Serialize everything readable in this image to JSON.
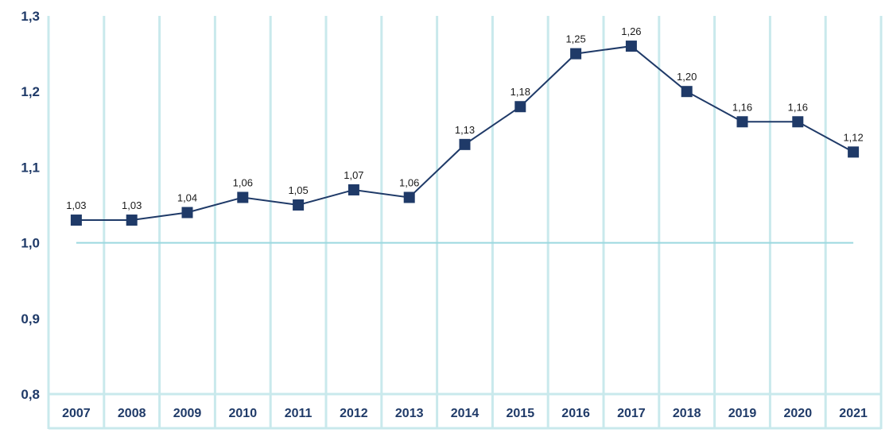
{
  "colors": {
    "grid": "#c9e9ec",
    "reference_line": "#9bd8df",
    "series": "#1f3a68",
    "marker": "#1f3a68",
    "axis_text": "#1f3a68",
    "label_text": "#1a1a1a"
  },
  "chart_data": {
    "type": "line",
    "title": "",
    "xlabel": "",
    "ylabel": "",
    "ylim": [
      0.8,
      1.3
    ],
    "yticks": [
      "0,8",
      "0,9",
      "1,0",
      "1,1",
      "1,2",
      "1,3"
    ],
    "ytick_values": [
      0.8,
      0.9,
      1.0,
      1.1,
      1.2,
      1.3
    ],
    "reference_value": 1.0,
    "categories": [
      "2007",
      "2008",
      "2009",
      "2010",
      "2011",
      "2012",
      "2013",
      "2014",
      "2015",
      "2016",
      "2017",
      "2018",
      "2019",
      "2020",
      "2021"
    ],
    "series": [
      {
        "name": "",
        "values": [
          1.03,
          1.03,
          1.04,
          1.06,
          1.05,
          1.07,
          1.06,
          1.13,
          1.18,
          1.25,
          1.26,
          1.2,
          1.16,
          1.16,
          1.12
        ],
        "labels": [
          "1,03",
          "1,03",
          "1,04",
          "1,06",
          "1,05",
          "1,07",
          "1,06",
          "1,13",
          "1,18",
          "1,25",
          "1,26",
          "1,20",
          "1,16",
          "1,16",
          "1,12"
        ]
      }
    ]
  }
}
